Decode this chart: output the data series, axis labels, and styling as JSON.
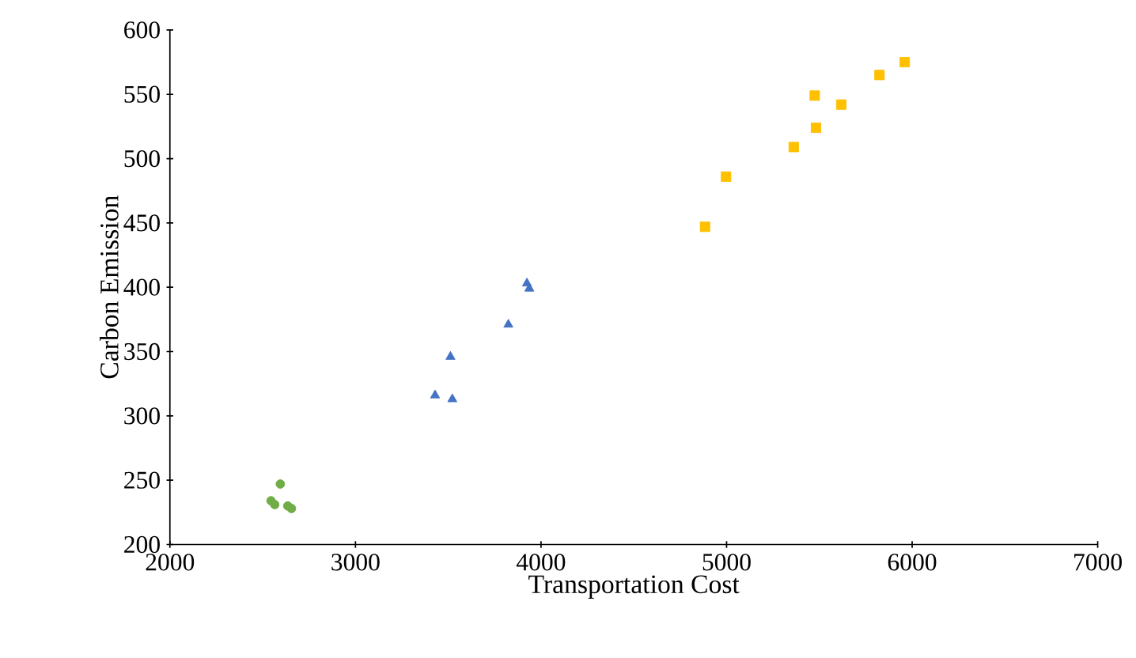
{
  "chart_data": {
    "type": "scatter",
    "xlabel": "Transportation Cost",
    "ylabel": "Carbon Emission",
    "xlim": [
      2000,
      7000
    ],
    "xticks": [
      2000,
      3000,
      4000,
      5000,
      6000,
      7000
    ],
    "ylim": [
      200,
      600
    ],
    "yticks": [
      200,
      250,
      300,
      350,
      400,
      450,
      500,
      550,
      600
    ],
    "series": [
      {
        "color": "#70ad47",
        "marker": "circle",
        "x": [
          2595,
          2545,
          2565,
          2635,
          2655
        ],
        "values": [
          247,
          234,
          231,
          230,
          228
        ]
      },
      {
        "color": "#4472c4",
        "marker": "triangle",
        "x": [
          3429,
          3522,
          3512,
          3824,
          3924,
          3937
        ],
        "values": [
          316,
          313,
          346,
          371,
          403,
          399
        ]
      },
      {
        "color": "#ffc000",
        "marker": "square",
        "x": [
          4884,
          4997,
          5362,
          5482,
          5475,
          5618,
          5824,
          5960
        ],
        "values": [
          447,
          486,
          509,
          524,
          549,
          542,
          565,
          575
        ]
      }
    ]
  }
}
